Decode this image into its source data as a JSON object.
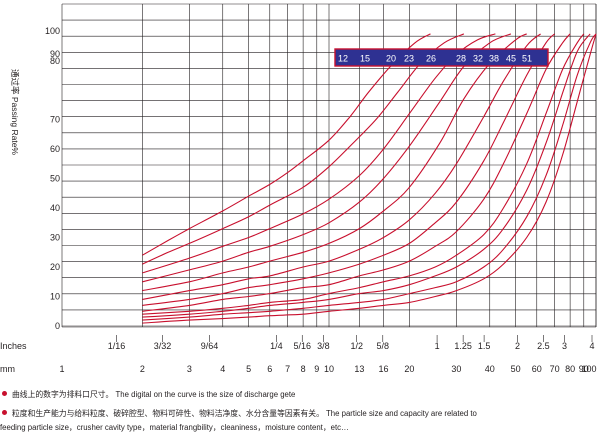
{
  "chart_data": {
    "type": "line",
    "ylabel": "通过率 Passing Rate%",
    "y_ticks": [
      0,
      10,
      20,
      30,
      40,
      50,
      60,
      70,
      80,
      90,
      100
    ],
    "ylim": [
      0,
      100
    ],
    "x_scale": "log",
    "xlim_mm": [
      1,
      100
    ],
    "inch_axis_label": "Inches",
    "inch_ticks": [
      {
        "label": "1/16",
        "mm": 1.6
      },
      {
        "label": "3/32",
        "mm": 2.38
      },
      {
        "label": "9/64",
        "mm": 3.57
      },
      {
        "label": "1/4",
        "mm": 6.35
      },
      {
        "label": "5/16",
        "mm": 7.94
      },
      {
        "label": "3/8",
        "mm": 9.53
      },
      {
        "label": "1/2",
        "mm": 12.7
      },
      {
        "label": "5/8",
        "mm": 15.9
      },
      {
        "label": "1",
        "mm": 25.4
      },
      {
        "label": "1.25",
        "mm": 31.8
      },
      {
        "label": "1.5",
        "mm": 38.1
      },
      {
        "label": "2",
        "mm": 50.8
      },
      {
        "label": "2.5",
        "mm": 63.5
      },
      {
        "label": "3",
        "mm": 76.2
      },
      {
        "label": "4",
        "mm": 101.6
      }
    ],
    "mm_axis_label": "mm",
    "mm_ticks": [
      1,
      2,
      3,
      4,
      5,
      6,
      7,
      8,
      9,
      10,
      13,
      16,
      20,
      30,
      40,
      50,
      60,
      70,
      80,
      90,
      100
    ],
    "legend_box": {
      "labels": [
        "12",
        "15",
        "20",
        "23",
        "26",
        "28",
        "32",
        "38",
        "45",
        "51"
      ]
    },
    "grid": true,
    "series": [
      {
        "name": "12",
        "x": [
          2,
          2.5,
          3,
          4,
          5,
          6,
          7,
          8,
          10,
          12,
          14,
          17,
          21,
          24
        ],
        "y": [
          24,
          29,
          33,
          39,
          44,
          48,
          52,
          56,
          63,
          71,
          79,
          88,
          96,
          99
        ]
      },
      {
        "name": "15",
        "x": [
          2,
          2.5,
          3,
          4,
          5,
          6,
          8,
          10,
          12,
          15,
          18,
          22,
          27,
          32
        ],
        "y": [
          21,
          25,
          28,
          33,
          37,
          41,
          47,
          54,
          61,
          70,
          79,
          89,
          96,
          99
        ]
      },
      {
        "name": "20",
        "x": [
          2,
          3,
          4,
          5,
          6,
          8,
          10,
          13,
          16,
          20,
          25,
          30,
          36,
          42
        ],
        "y": [
          18,
          23,
          27,
          30,
          33,
          38,
          43,
          51,
          60,
          72,
          84,
          92,
          97,
          99
        ]
      },
      {
        "name": "23",
        "x": [
          2,
          3,
          4,
          5,
          6,
          8,
          10,
          13,
          16,
          20,
          26,
          32,
          40,
          48
        ],
        "y": [
          15,
          19,
          22,
          25,
          27,
          31,
          35,
          42,
          50,
          61,
          76,
          88,
          96,
          99
        ]
      },
      {
        "name": "26",
        "x": [
          2,
          3,
          4,
          5,
          6,
          8,
          10,
          13,
          16,
          20,
          26,
          32,
          40,
          50,
          55
        ],
        "y": [
          12,
          15,
          18,
          20,
          22,
          25,
          28,
          33,
          39,
          47,
          62,
          77,
          89,
          97,
          99
        ]
      },
      {
        "name": "28",
        "x": [
          2,
          3,
          4,
          5,
          6,
          8,
          10,
          13,
          16,
          20,
          25,
          30,
          38,
          45,
          55,
          62
        ],
        "y": [
          9,
          12,
          14,
          16,
          17,
          20,
          22,
          26,
          30,
          36,
          45,
          55,
          71,
          83,
          95,
          99
        ]
      },
      {
        "name": "32",
        "x": [
          2,
          3,
          4,
          5,
          6,
          8,
          10,
          13,
          16,
          20,
          25,
          30,
          38,
          45,
          55,
          65,
          70
        ],
        "y": [
          7,
          9,
          11,
          13,
          14,
          16,
          18,
          21,
          24,
          28,
          35,
          42,
          56,
          69,
          85,
          96,
          99
        ]
      },
      {
        "name": "38",
        "x": [
          2,
          3,
          4,
          5,
          6,
          8,
          10,
          13,
          16,
          20,
          25,
          30,
          38,
          45,
          55,
          65,
          75,
          80
        ],
        "y": [
          5,
          7,
          9,
          10,
          11,
          13,
          14,
          17,
          19,
          22,
          27,
          32,
          43,
          55,
          72,
          87,
          96,
          99
        ]
      },
      {
        "name": "45",
        "x": [
          2,
          3,
          4,
          5,
          6,
          8,
          10,
          13,
          16,
          20,
          25,
          30,
          38,
          45,
          55,
          65,
          75,
          85,
          90
        ],
        "y": [
          4,
          5,
          6,
          7,
          8,
          9,
          11,
          13,
          15,
          17,
          20,
          24,
          31,
          40,
          55,
          72,
          87,
          96,
          99
        ]
      },
      {
        "name": "51",
        "x": [
          2,
          3,
          4,
          5,
          6,
          8,
          10,
          13,
          16,
          20,
          25,
          30,
          38,
          45,
          55,
          65,
          75,
          85,
          95
        ],
        "y": [
          3,
          4,
          5,
          6,
          7,
          8,
          9,
          11,
          12,
          14,
          17,
          20,
          26,
          33,
          46,
          62,
          79,
          93,
          99
        ]
      },
      {
        "name": "",
        "x": [
          2,
          3,
          4,
          5,
          6,
          8,
          10,
          13,
          16,
          20,
          25,
          30,
          38,
          45,
          55,
          65,
          75,
          85,
          95,
          100
        ],
        "y": [
          2,
          3,
          4,
          4.5,
          5,
          6,
          7,
          8,
          9,
          11,
          13,
          15,
          20,
          26,
          37,
          51,
          68,
          85,
          96,
          99
        ]
      },
      {
        "name": "",
        "x": [
          2,
          3,
          4,
          5,
          6,
          8,
          10,
          13,
          16,
          20,
          25,
          30,
          38,
          45,
          55,
          65,
          75,
          85,
          95,
          100
        ],
        "y": [
          1,
          2,
          2.5,
          3,
          3.5,
          4,
          5,
          6,
          7,
          8,
          10,
          12,
          16,
          21,
          30,
          42,
          58,
          76,
          92,
          99
        ]
      }
    ],
    "colors": {
      "curve": "#c8102e",
      "grid": "#231f20",
      "legend_box": "#2e3192",
      "legend_text": "#ffffff"
    }
  },
  "notes": {
    "note1": "曲线上的数字为排料口尺寸。 The digital on the curve is the size of discharge gete",
    "note2": "粒度和生产能力与给料粒度、破碎腔型、物料可碎性、物料洁净度、水分含量等因素有关。   The particle size and capacity are related to",
    "note2_cont": "feeding particle size，crusher cavity type，material frangbility，cleaniness，moisture content，etc…",
    "bullet_color": "#c8102e"
  }
}
